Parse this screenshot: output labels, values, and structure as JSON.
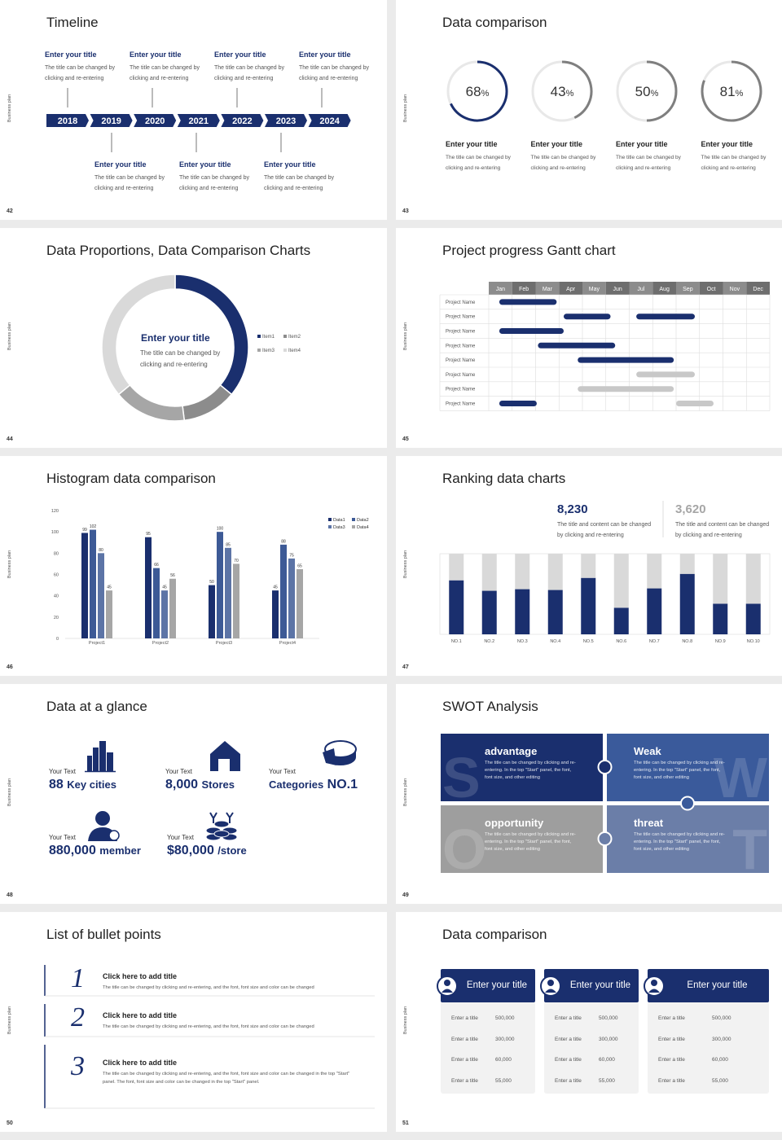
{
  "sidebar_label": "Business plan",
  "slides": [
    {
      "number": 42,
      "title": "Timeline",
      "years": [
        2018,
        2019,
        2020,
        2021,
        2022,
        2023,
        2024
      ],
      "events": [
        {
          "title": "Enter your title",
          "text": "The title can be changed by clicking and re-entering"
        },
        {
          "title": "Enter your title",
          "text": "The title can be changed by clicking and re-entering"
        },
        {
          "title": "Enter your title",
          "text": "The title can be changed by clicking and re-entering"
        },
        {
          "title": "Enter your title",
          "text": "The title can be changed by clicking and re-entering"
        },
        {
          "title": "Enter your title",
          "text": "The title can be changed by clicking and re-entering"
        },
        {
          "title": "Enter your title",
          "text": "The title can be changed by clicking and re-entering"
        },
        {
          "title": "Enter your title",
          "text": "The title can be changed by clicking and re-entering"
        }
      ]
    },
    {
      "number": 43,
      "title": "Data comparison",
      "unit": "%",
      "rings": [
        {
          "value": 68,
          "color": "#1a2f6e",
          "title": "Enter your title",
          "text": "The title can be changed by clicking and re-entering"
        },
        {
          "value": 43,
          "color": "#7f7f7f",
          "title": "Enter your title",
          "text": "The title can be changed by clicking and re-entering"
        },
        {
          "value": 50,
          "color": "#7f7f7f",
          "title": "Enter your title",
          "text": "The title can be changed by clicking and re-entering"
        },
        {
          "value": 81,
          "color": "#7f7f7f",
          "title": "Enter your title",
          "text": "The title can be changed by clicking and re-entering"
        }
      ]
    },
    {
      "number": 44,
      "title": "Data Proportions, Data Comparison Charts",
      "center_title": "Enter your title",
      "center_text": "The title can be changed by clicking and re-entering",
      "chart_data": {
        "type": "donut",
        "categories": [
          "Item1",
          "Item2",
          "Item3",
          "Item4"
        ],
        "values": [
          36,
          12,
          16,
          36
        ],
        "colors": [
          "#1a2f6e",
          "#8c8c8c",
          "#a6a6a6",
          "#d9d9d9"
        ]
      }
    },
    {
      "number": 45,
      "title": "Project progress Gantt chart",
      "chart_data": {
        "type": "gantt",
        "months": [
          "Jan",
          "Feb",
          "Mar",
          "Apr",
          "May",
          "Jun",
          "Jul",
          "Aug",
          "Sep",
          "Oct",
          "Nov",
          "Dec"
        ],
        "rows": [
          {
            "name": "Project Name",
            "bars": [
              {
                "start": 0.45,
                "end": 2.9,
                "color": "#1a2f6e"
              }
            ]
          },
          {
            "name": "Project Name",
            "bars": [
              {
                "start": 3.2,
                "end": 5.2,
                "color": "#1a2f6e"
              },
              {
                "start": 6.3,
                "end": 8.8,
                "color": "#1a2f6e"
              }
            ]
          },
          {
            "name": "Project Name",
            "bars": [
              {
                "start": 0.45,
                "end": 3.2,
                "color": "#1a2f6e"
              }
            ]
          },
          {
            "name": "Project Name",
            "bars": [
              {
                "start": 2.1,
                "end": 5.4,
                "color": "#1a2f6e"
              }
            ]
          },
          {
            "name": "Project Name",
            "bars": [
              {
                "start": 3.8,
                "end": 7.9,
                "color": "#1a2f6e"
              }
            ]
          },
          {
            "name": "Project Name",
            "bars": [
              {
                "start": 6.3,
                "end": 8.8,
                "color": "#c8c8c8"
              }
            ]
          },
          {
            "name": "Project Name",
            "bars": [
              {
                "start": 3.8,
                "end": 7.9,
                "color": "#c8c8c8"
              }
            ]
          },
          {
            "name": "Project Name",
            "bars": [
              {
                "start": 0.45,
                "end": 2.05,
                "color": "#1a2f6e"
              },
              {
                "start": 8.0,
                "end": 9.6,
                "color": "#c8c8c8"
              }
            ]
          }
        ]
      }
    },
    {
      "number": 46,
      "title": "Histogram data comparison",
      "chart_data": {
        "type": "bar",
        "categories": [
          "Project1",
          "Project2",
          "Project3",
          "Project4"
        ],
        "series": [
          {
            "name": "Data1",
            "color": "#1a2f6e",
            "values": [
              99,
              95,
              50,
              45
            ]
          },
          {
            "name": "Data2",
            "color": "#3d5a96",
            "values": [
              102,
              66,
              100,
              88
            ]
          },
          {
            "name": "Data3",
            "color": "#5c74a6",
            "values": [
              80,
              45,
              85,
              75
            ]
          },
          {
            "name": "Data4",
            "color": "#a6a6a6",
            "values": [
              45,
              56,
              70,
              65
            ]
          }
        ],
        "ylim": [
          0,
          120
        ],
        "yticks": [
          0,
          20,
          40,
          60,
          80,
          100,
          120
        ],
        "grid": false
      }
    },
    {
      "number": 47,
      "title": "Ranking data charts",
      "stats": [
        {
          "value": "8,230",
          "color": "#1a2f6e",
          "text": "The title and content can be changed by clicking and re-entering"
        },
        {
          "value": "3,620",
          "color": "#a6a6a6",
          "text": "The title and content can be changed by clicking and re-entering"
        }
      ],
      "chart_data": {
        "type": "stacked_bar",
        "categories": [
          "NO.1",
          "NO.2",
          "NO.3",
          "NO.4",
          "NO.5",
          "NO.6",
          "NO.7",
          "NO.8",
          "NO.9",
          "NO.10"
        ],
        "series": [
          {
            "color": "#1a2f6e",
            "values": [
              67,
              54,
              56,
              55,
              70,
              33,
              57,
              75,
              38,
              38
            ]
          },
          {
            "color": "#d9d9d9",
            "values": [
              33,
              46,
              44,
              45,
              30,
              67,
              43,
              25,
              62,
              62
            ]
          }
        ],
        "ylim": [
          0,
          100
        ]
      }
    },
    {
      "number": 48,
      "title": "Data at a glance",
      "items": [
        {
          "label": "Your Text",
          "value": "88",
          "unit": "Key cities",
          "unit_before": false
        },
        {
          "label": "Your Text",
          "value": "8,000",
          "unit": "Stores",
          "unit_before": false
        },
        {
          "label": "Your Text",
          "value": "NO.1",
          "unit": "Categories",
          "unit_before": true
        },
        {
          "label": "Your Text",
          "value": "880,000",
          "unit": "member",
          "unit_before": false
        },
        {
          "label": "Your Text",
          "value": "$80,000",
          "unit": "/store",
          "unit_before": false
        }
      ]
    },
    {
      "number": 49,
      "title": "SWOT Analysis",
      "quadrants": [
        {
          "letter": "S",
          "title": "advantage",
          "color": "#1a2f6e",
          "text": "The title can be changed by clicking and re-entering. In the top \"Start\" panel, the font, font size, and other editing"
        },
        {
          "letter": "W",
          "title": "Weak",
          "color": "#3a5a9b",
          "text": "The title can be changed by clicking and re-entering. In the top \"Start\" panel, the font, font size, and other editing"
        },
        {
          "letter": "O",
          "title": "opportunity",
          "color": "#9e9e9e",
          "text": "The title can be changed by clicking and re-entering. In the top \"Start\" panel, the font, font size, and other editing"
        },
        {
          "letter": "T",
          "title": "threat",
          "color": "#6b7ea8",
          "text": "The title can be changed by clicking and re-entering. In the top \"Start\" panel, the font, font size, and other editing"
        }
      ]
    },
    {
      "number": 50,
      "title": "List of bullet points",
      "items": [
        {
          "number": "1",
          "title": "Click here to add title",
          "text": "The title can be changed by clicking and re-entering, and the font, font size and color can be changed"
        },
        {
          "number": "2",
          "title": "Click here to add title",
          "text": "The title can be changed by clicking and re-entering, and the font, font size and color can be changed"
        },
        {
          "number": "3",
          "title": "Click here to add title",
          "text": "The title can be changed by clicking and re-entering, and the font, font size and color can be changed in the top \"Start\" panel. The font, font size and color can be changed in the top \"Start\" panel."
        }
      ]
    },
    {
      "number": 51,
      "title": "Data comparison",
      "cards": [
        {
          "title": "Enter your title",
          "rows": [
            {
              "label": "Enter a title",
              "value": "500,000"
            },
            {
              "label": "Enter a title",
              "value": "300,000"
            },
            {
              "label": "Enter a title",
              "value": "60,000"
            },
            {
              "label": "Enter a title",
              "value": "55,000"
            }
          ]
        },
        {
          "title": "Enter your title",
          "rows": [
            {
              "label": "Enter a title",
              "value": "500,000"
            },
            {
              "label": "Enter a title",
              "value": "300,000"
            },
            {
              "label": "Enter a title",
              "value": "60,000"
            },
            {
              "label": "Enter a title",
              "value": "55,000"
            }
          ]
        },
        {
          "title": "Enter your title",
          "rows": [
            {
              "label": "Enter a title",
              "value": "500,000"
            },
            {
              "label": "Enter a title",
              "value": "300,000"
            },
            {
              "label": "Enter a title",
              "value": "60,000"
            },
            {
              "label": "Enter a title",
              "value": "55,000"
            }
          ]
        }
      ]
    }
  ]
}
